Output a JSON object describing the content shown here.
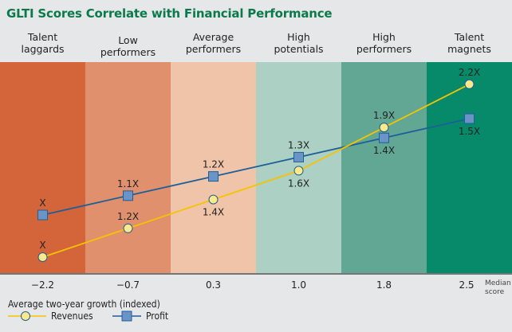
{
  "chart_data": {
    "type": "line",
    "title": "GLTI Scores Correlate with Financial Performance",
    "categories": [
      "Talent laggards",
      "Low performers",
      "Average performers",
      "High potentials",
      "High performers",
      "Talent magnets"
    ],
    "category_lines": [
      [
        "Talent",
        "laggards"
      ],
      [
        "Low",
        "performers"
      ],
      [
        "Average",
        "performers"
      ],
      [
        "High",
        "potentials"
      ],
      [
        "High",
        "performers"
      ],
      [
        "Talent",
        "magnets"
      ]
    ],
    "median_scores": [
      "−2.2",
      "−0.7",
      "0.3",
      "1.0",
      "1.8",
      "2.5"
    ],
    "xlabel": "Median score",
    "xlabel_lines": [
      "Median",
      "score"
    ],
    "legend_title": "Average two-year growth (indexed)",
    "series": [
      {
        "name": "Revenues",
        "values": [
          1.0,
          1.2,
          1.4,
          1.6,
          1.9,
          2.2
        ],
        "labels": [
          "X",
          "1.2X",
          "1.4X",
          "1.6X",
          "1.9X",
          "2.2X"
        ],
        "color": "#f5c400",
        "marker": "circle",
        "marker_fill": "#fbe98a"
      },
      {
        "name": "Profit",
        "values": [
          1.0,
          1.1,
          1.2,
          1.3,
          1.4,
          1.5
        ],
        "labels": [
          "X",
          "1.1X",
          "1.2X",
          "1.3X",
          "1.4X",
          "1.5X"
        ],
        "color": "#1e5f99",
        "marker": "square",
        "marker_fill": "#6a93c6"
      }
    ],
    "band_colors": [
      "#d4643a",
      "#e0906c",
      "#f0c4a8",
      "#acd0c4",
      "#62a794",
      "#078a6a"
    ],
    "legend_position": "bottom-left",
    "grid": false
  }
}
